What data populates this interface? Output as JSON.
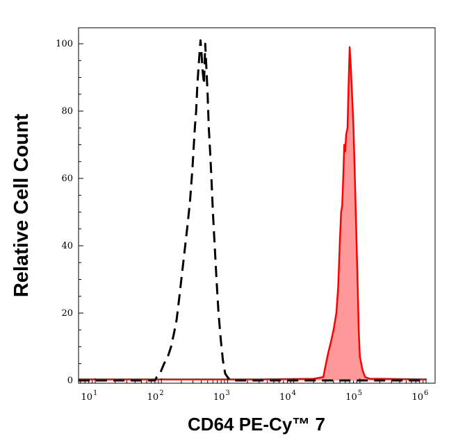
{
  "chart_data": {
    "type": "area",
    "xlabel": "CD64 PE-Cy™ 7",
    "ylabel": "Relative Cell Count",
    "x_scale": "log",
    "xlim": [
      10,
      1000000
    ],
    "ylim": [
      0,
      100
    ],
    "y_ticks": [
      "0",
      "20",
      "40",
      "60",
      "80",
      "100"
    ],
    "x_ticks": [
      {
        "base": "10",
        "exp": "1"
      },
      {
        "base": "10",
        "exp": "2"
      },
      {
        "base": "10",
        "exp": "3"
      },
      {
        "base": "10",
        "exp": "4"
      },
      {
        "base": "10",
        "exp": "5"
      },
      {
        "base": "10",
        "exp": "6"
      }
    ],
    "grid": false,
    "series": [
      {
        "style": "dashed",
        "color": "#000000",
        "filled": false,
        "points": [
          [
            5.5,
            0
          ],
          [
            50,
            0
          ],
          [
            80,
            0
          ],
          [
            85,
            1
          ],
          [
            95,
            2
          ],
          [
            110,
            5
          ],
          [
            125,
            7
          ],
          [
            140,
            10
          ],
          [
            155,
            14
          ],
          [
            170,
            18
          ],
          [
            185,
            24
          ],
          [
            200,
            30
          ],
          [
            220,
            37
          ],
          [
            245,
            45
          ],
          [
            270,
            53
          ],
          [
            295,
            63
          ],
          [
            320,
            75
          ],
          [
            335,
            80
          ],
          [
            350,
            88
          ],
          [
            370,
            95
          ],
          [
            390,
            101
          ],
          [
            405,
            97
          ],
          [
            420,
            92
          ],
          [
            440,
            88
          ],
          [
            460,
            100
          ],
          [
            480,
            92
          ],
          [
            500,
            85
          ],
          [
            520,
            75
          ],
          [
            545,
            68
          ],
          [
            570,
            60
          ],
          [
            600,
            50
          ],
          [
            640,
            40
          ],
          [
            680,
            30
          ],
          [
            730,
            20
          ],
          [
            790,
            12
          ],
          [
            850,
            6
          ],
          [
            920,
            2
          ],
          [
            1000,
            1
          ],
          [
            1100,
            0
          ],
          [
            1400,
            0
          ],
          [
            1000000,
            0
          ]
        ]
      },
      {
        "style": "solid",
        "color": "#ff0000",
        "fill_color": "#ff9999",
        "filled": true,
        "points": [
          [
            5.5,
            0.3
          ],
          [
            3000,
            0.3
          ],
          [
            20000,
            0.5
          ],
          [
            28000,
            1
          ],
          [
            30000,
            4
          ],
          [
            33000,
            8
          ],
          [
            36000,
            11
          ],
          [
            40000,
            15
          ],
          [
            44000,
            20
          ],
          [
            47000,
            28
          ],
          [
            50000,
            42
          ],
          [
            52000,
            50
          ],
          [
            54000,
            52
          ],
          [
            56000,
            60
          ],
          [
            58000,
            70
          ],
          [
            60000,
            68
          ],
          [
            62000,
            73
          ],
          [
            65000,
            75
          ],
          [
            67000,
            85
          ],
          [
            69000,
            95
          ],
          [
            70000,
            99
          ],
          [
            71000,
            97
          ],
          [
            73000,
            93
          ],
          [
            76000,
            85
          ],
          [
            80000,
            75
          ],
          [
            84000,
            60
          ],
          [
            88000,
            45
          ],
          [
            92000,
            30
          ],
          [
            96000,
            15
          ],
          [
            100000,
            7
          ],
          [
            110000,
            3
          ],
          [
            120000,
            1
          ],
          [
            140000,
            0.5
          ],
          [
            200000,
            0.5
          ],
          [
            1000000,
            0.3
          ]
        ]
      }
    ]
  }
}
